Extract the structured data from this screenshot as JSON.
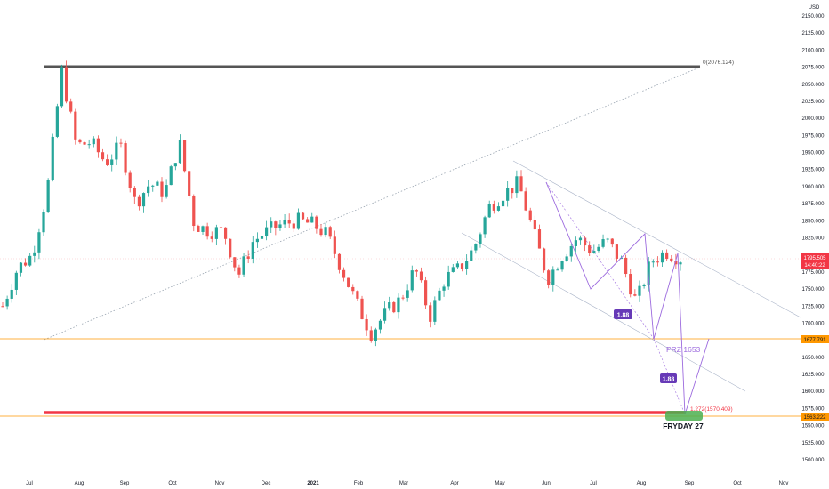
{
  "axis": {
    "currency": "USD",
    "y_ticks": [
      2150,
      2125,
      2100,
      2075,
      2050,
      2025,
      2000,
      1975,
      1950,
      1925,
      1900,
      1875,
      1850,
      1825,
      1800,
      1775,
      1750,
      1725,
      1700,
      1675,
      1650,
      1625,
      1600,
      1575,
      1550,
      1525,
      1500
    ],
    "y_tick_labels": [
      "2150.000",
      "2125.000",
      "2100.000",
      "2075.000",
      "2050.000",
      "2025.000",
      "2000.000",
      "1975.000",
      "1950.000",
      "1925.000",
      "1900.000",
      "1875.000",
      "1850.000",
      "1825.000",
      "1800.000",
      "1775.000",
      "1750.000",
      "1725.000",
      "1700.000",
      "1675.000",
      "1650.000",
      "1625.000",
      "1600.000",
      "1575.000",
      "1550.000",
      "1525.000",
      "1500.000"
    ],
    "x_labels": [
      "Jul",
      "Aug",
      "Sep",
      "Oct",
      "Nov",
      "Dec",
      "2021",
      "Feb",
      "Mar",
      "Apr",
      "May",
      "Jun",
      "Jul",
      "Aug",
      "Sep",
      "Oct",
      "Nov"
    ]
  },
  "price_badge": {
    "price": "1795.505",
    "countdown": "14:40:22",
    "color": "#f23645"
  },
  "level_badges": [
    {
      "text": "1677.791",
      "color": "#ff9800"
    },
    {
      "text": "1563.222",
      "color": "#ff9800"
    }
  ],
  "annotations": {
    "top_level": "0(2076.124)",
    "fib_level": "1.272(1570.409)",
    "prz": "PRZ 1653",
    "ratio_1": "1.88",
    "ratio_2": "1.88",
    "target": "FRYDAY 27"
  },
  "colors": {
    "up": "#26a69a",
    "down": "#ef5350",
    "pattern": "#9c6ade",
    "ratio_bg": "#673ab7",
    "top_line": "#555555",
    "support": "#ff9800",
    "target_line": "#f23645",
    "target_box": "#4caf50"
  },
  "chart_data": {
    "type": "candlestick",
    "instrument_currency": "USD",
    "y_range": [
      1490,
      2155
    ],
    "x_months": [
      "Jul",
      "Aug",
      "Sep",
      "Oct",
      "Nov",
      "Dec",
      "2021",
      "Feb",
      "Mar",
      "Apr",
      "May",
      "Jun",
      "Jul",
      "Aug",
      "Sep",
      "Oct",
      "Nov"
    ],
    "swing_path_close": [
      1725,
      1780,
      1800,
      1890,
      2070,
      1960,
      1965,
      1935,
      1960,
      1875,
      1905,
      1890,
      1965,
      1845,
      1835,
      1835,
      1770,
      1820,
      1835,
      1845,
      1850,
      1845,
      1830,
      1780,
      1730,
      1685,
      1715,
      1735,
      1780,
      1710,
      1765,
      1780,
      1810,
      1870,
      1890,
      1905,
      1835,
      1765,
      1800,
      1825,
      1805,
      1820,
      1790,
      1730,
      1790,
      1805,
      1795
    ],
    "horizontal_levels": [
      2076.124,
      1677.791,
      1563.222
    ],
    "projection_target": 1570.409,
    "last_price": 1795.505
  }
}
